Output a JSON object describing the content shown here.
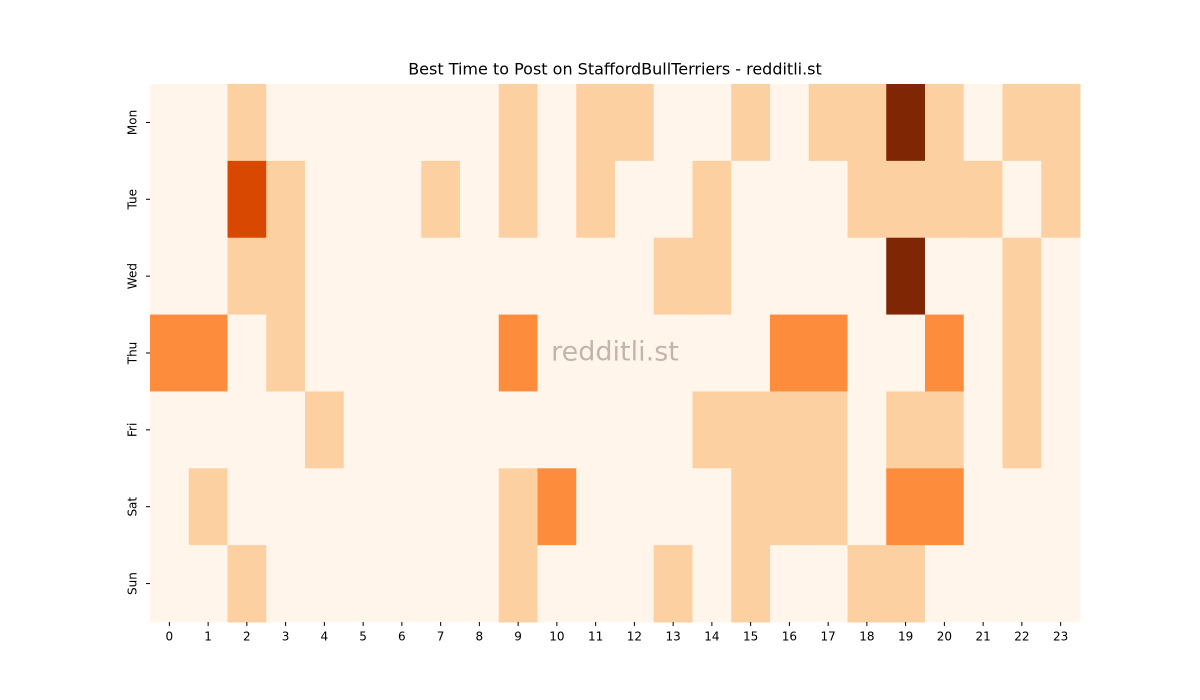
{
  "chart_data": {
    "type": "heatmap",
    "title": "Best Time to Post on StaffordBullTerriers - redditli.st",
    "watermark": "redditli.st",
    "x_categories": [
      "0",
      "1",
      "2",
      "3",
      "4",
      "5",
      "6",
      "7",
      "8",
      "9",
      "10",
      "11",
      "12",
      "13",
      "14",
      "15",
      "16",
      "17",
      "18",
      "19",
      "20",
      "21",
      "22",
      "23"
    ],
    "y_categories": [
      "Mon",
      "Tue",
      "Wed",
      "Thu",
      "Fri",
      "Sat",
      "Sun"
    ],
    "values": [
      [
        0,
        0,
        1,
        0,
        0,
        0,
        0,
        0,
        0,
        1,
        0,
        1,
        1,
        0,
        0,
        1,
        0,
        1,
        1,
        4,
        1,
        0,
        1,
        1
      ],
      [
        0,
        0,
        3,
        1,
        0,
        0,
        0,
        1,
        0,
        1,
        0,
        1,
        0,
        0,
        1,
        0,
        0,
        0,
        1,
        1,
        1,
        1,
        0,
        1
      ],
      [
        0,
        0,
        1,
        1,
        0,
        0,
        0,
        0,
        0,
        0,
        0,
        0,
        0,
        1,
        1,
        0,
        0,
        0,
        0,
        4,
        0,
        0,
        1,
        0
      ],
      [
        2,
        2,
        0,
        1,
        0,
        0,
        0,
        0,
        0,
        2,
        0,
        0,
        0,
        0,
        0,
        0,
        2,
        2,
        0,
        0,
        2,
        0,
        1,
        0
      ],
      [
        0,
        0,
        0,
        0,
        1,
        0,
        0,
        0,
        0,
        0,
        0,
        0,
        0,
        0,
        1,
        1,
        1,
        1,
        0,
        1,
        1,
        0,
        1,
        0
      ],
      [
        0,
        1,
        0,
        0,
        0,
        0,
        0,
        0,
        0,
        1,
        2,
        0,
        0,
        0,
        0,
        1,
        1,
        1,
        0,
        2,
        2,
        0,
        0,
        0
      ],
      [
        0,
        0,
        1,
        0,
        0,
        0,
        0,
        0,
        0,
        1,
        0,
        0,
        0,
        1,
        0,
        1,
        0,
        0,
        1,
        1,
        0,
        0,
        0,
        0
      ]
    ],
    "vlim": [
      0,
      4
    ],
    "colormap": [
      "#fff5eb",
      "#fdd0a2",
      "#fd8d3c",
      "#d94801",
      "#7f2704"
    ]
  }
}
